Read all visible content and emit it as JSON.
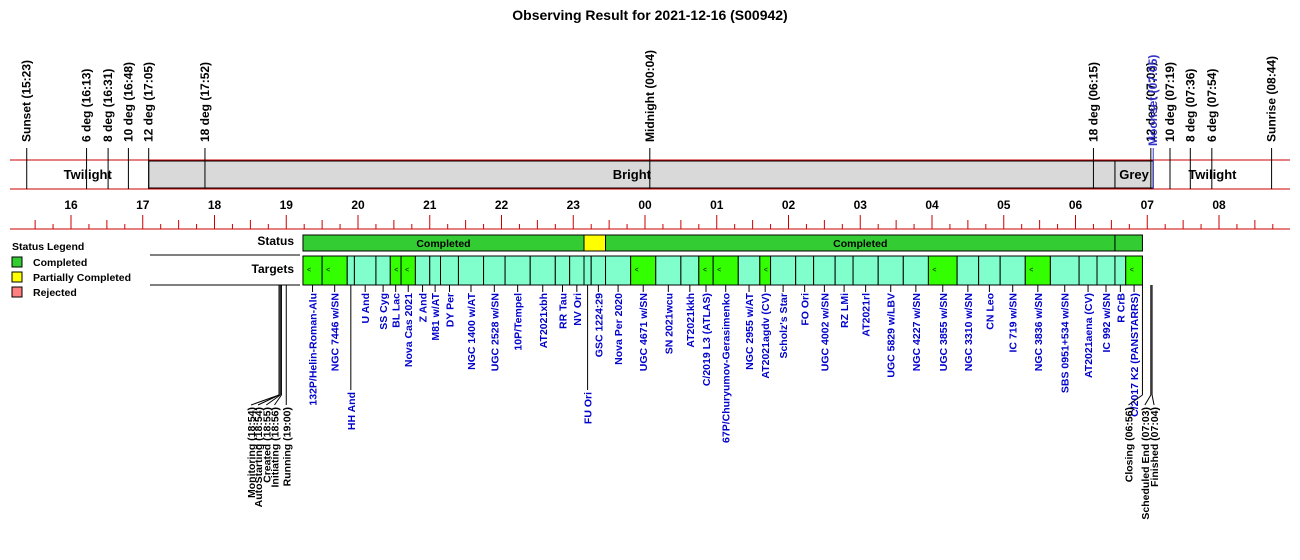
{
  "title": "Observing Result for 2021-12-16 (S00942)",
  "colors": {
    "line": "#cc0000",
    "bright_band": "#d9d9d9",
    "completed": "#33cc33",
    "partial": "#ffff00",
    "rejected": "#ff8080",
    "target_green": "#33ff00",
    "target_aqua": "#80ffcc",
    "target_text": "#0000cc",
    "moonset_text": "#3333cc"
  },
  "events": [
    {
      "label": "Sunset (15:23)",
      "t": 15.383
    },
    {
      "label": "6 deg (16:13)",
      "t": 16.217
    },
    {
      "label": "8 deg (16:31)",
      "t": 16.517
    },
    {
      "label": "10 deg (16:48)",
      "t": 16.8
    },
    {
      "label": "12 deg (17:05)",
      "t": 17.083
    },
    {
      "label": "18 deg (17:52)",
      "t": 17.867
    },
    {
      "label": "Midnight (00:04)",
      "t": 24.067
    },
    {
      "label": "18 deg (06:15)",
      "t": 30.25
    },
    {
      "label": "12 deg (07:03)",
      "t": 31.05
    },
    {
      "label": "Moonset (07:05)",
      "t": 31.083,
      "color": "moonset"
    },
    {
      "label": "10 deg (07:19)",
      "t": 31.317
    },
    {
      "label": "8 deg (07:36)",
      "t": 31.6
    },
    {
      "label": "6 deg (07:54)",
      "t": 31.9
    },
    {
      "label": "Sunrise (08:44)",
      "t": 32.733
    }
  ],
  "bands": [
    {
      "label": "Twilight",
      "start": 15.383,
      "end": 17.083,
      "fill": "white"
    },
    {
      "label": "Bright",
      "start": 17.083,
      "end": 30.55,
      "fill": "gray"
    },
    {
      "label": "Grey",
      "start": 30.55,
      "end": 31.083,
      "fill": "gray"
    },
    {
      "label": "Twilight",
      "start": 31.083,
      "end": 32.733,
      "fill": "white"
    }
  ],
  "hour_labels": [
    "16",
    "17",
    "18",
    "19",
    "20",
    "21",
    "22",
    "23",
    "00",
    "01",
    "02",
    "03",
    "04",
    "05",
    "06",
    "07",
    "08"
  ],
  "row_labels": {
    "status": "Status",
    "targets": "Targets"
  },
  "legend": {
    "title": "Status Legend",
    "items": [
      {
        "label": "Completed",
        "color": "completed"
      },
      {
        "label": "Partially Completed",
        "color": "partial"
      },
      {
        "label": "Rejected",
        "color": "rejected"
      }
    ]
  },
  "status_segments": [
    {
      "label": "Completed",
      "start": 19.233,
      "end": 23.15,
      "status": "completed"
    },
    {
      "label": "",
      "start": 23.15,
      "end": 23.45,
      "status": "partial"
    },
    {
      "label": "Completed",
      "start": 23.45,
      "end": 30.55,
      "status": "completed"
    },
    {
      "label": "",
      "start": 30.55,
      "end": 30.933,
      "status": "completed"
    }
  ],
  "targets": [
    {
      "name": "132P/Helin-Roman-Alu",
      "s": 19.233,
      "e": 19.5,
      "c": "green",
      "mark": true,
      "lane": "top"
    },
    {
      "name": "NGC 7446 w/SN",
      "s": 19.5,
      "e": 19.85,
      "c": "green",
      "mark": true,
      "lane": "top"
    },
    {
      "name": "HH And",
      "s": 19.85,
      "e": 19.95,
      "c": "aqua",
      "lane": "bottom"
    },
    {
      "name": "U And",
      "s": 19.95,
      "e": 20.25,
      "c": "aqua",
      "lane": "top"
    },
    {
      "name": "SS Cyg",
      "s": 20.25,
      "e": 20.45,
      "c": "aqua",
      "lane": "top"
    },
    {
      "name": "BL Lac",
      "s": 20.45,
      "e": 20.6,
      "c": "green",
      "mark": true,
      "lane": "top"
    },
    {
      "name": "Nova Cas 2021",
      "s": 20.6,
      "e": 20.8,
      "c": "green",
      "mark": true,
      "lane": "top"
    },
    {
      "name": "Z And",
      "s": 20.8,
      "e": 21.0,
      "c": "aqua",
      "lane": "top"
    },
    {
      "name": "M81 w/AT",
      "s": 21.0,
      "e": 21.15,
      "c": "aqua",
      "lane": "top"
    },
    {
      "name": "DY Per",
      "s": 21.15,
      "e": 21.4,
      "c": "aqua",
      "lane": "top"
    },
    {
      "name": "NGC 1400 w/AT",
      "s": 21.4,
      "e": 21.75,
      "c": "aqua",
      "lane": "top"
    },
    {
      "name": "UGC 2528 w/SN",
      "s": 21.75,
      "e": 22.05,
      "c": "aqua",
      "lane": "top"
    },
    {
      "name": "10P/Tempel",
      "s": 22.05,
      "e": 22.4,
      "c": "aqua",
      "lane": "top"
    },
    {
      "name": "AT2021xbh",
      "s": 22.4,
      "e": 22.75,
      "c": "aqua",
      "lane": "top"
    },
    {
      "name": "RR Tau",
      "s": 22.75,
      "e": 22.95,
      "c": "aqua",
      "lane": "top"
    },
    {
      "name": "NV Ori",
      "s": 22.95,
      "e": 23.15,
      "c": "aqua",
      "lane": "top"
    },
    {
      "name": "FU Ori",
      "s": 23.15,
      "e": 23.25,
      "c": "aqua",
      "lane": "bottom"
    },
    {
      "name": "GSC 1224:29",
      "s": 23.25,
      "e": 23.45,
      "c": "aqua",
      "lane": "top"
    },
    {
      "name": "Nova Per 2020",
      "s": 23.45,
      "e": 23.8,
      "c": "aqua",
      "lane": "top"
    },
    {
      "name": "UGC 4671 w/SN",
      "s": 23.8,
      "e": 24.15,
      "c": "green",
      "mark": true,
      "lane": "top"
    },
    {
      "name": "SN 2021wcu",
      "s": 24.15,
      "e": 24.5,
      "c": "aqua",
      "lane": "top"
    },
    {
      "name": "AT2021kkh",
      "s": 24.5,
      "e": 24.75,
      "c": "aqua",
      "lane": "top"
    },
    {
      "name": "C/2019 L3 (ATLAS)",
      "s": 24.75,
      "e": 24.95,
      "c": "green",
      "mark": true,
      "lane": "top"
    },
    {
      "name": "67P/Churyumov-Gerasimenko",
      "s": 24.95,
      "e": 25.3,
      "c": "green",
      "mark": true,
      "lane": "top"
    },
    {
      "name": "NGC 2955 w/AT",
      "s": 25.3,
      "e": 25.6,
      "c": "aqua",
      "lane": "top"
    },
    {
      "name": "AT2021agdv (CV)",
      "s": 25.6,
      "e": 25.75,
      "c": "green",
      "mark": true,
      "lane": "top"
    },
    {
      "name": "Scholz's Star",
      "s": 25.75,
      "e": 26.1,
      "c": "aqua",
      "lane": "top"
    },
    {
      "name": "FO Ori",
      "s": 26.1,
      "e": 26.35,
      "c": "aqua",
      "lane": "top"
    },
    {
      "name": "UGC 4002 w/SN",
      "s": 26.35,
      "e": 26.65,
      "c": "aqua",
      "lane": "top"
    },
    {
      "name": "RZ LMi",
      "s": 26.65,
      "e": 26.9,
      "c": "aqua",
      "lane": "top"
    },
    {
      "name": "AT2021rl",
      "s": 26.9,
      "e": 27.25,
      "c": "aqua",
      "lane": "top"
    },
    {
      "name": "UGC 5829 w/LBV",
      "s": 27.25,
      "e": 27.6,
      "c": "aqua",
      "lane": "top"
    },
    {
      "name": "NGC 4227 w/SN",
      "s": 27.6,
      "e": 27.95,
      "c": "aqua",
      "lane": "top"
    },
    {
      "name": "UGC 3855 w/SN",
      "s": 27.95,
      "e": 28.35,
      "c": "green",
      "mark": true,
      "lane": "top"
    },
    {
      "name": "NGC 3310 w/SN",
      "s": 28.35,
      "e": 28.65,
      "c": "aqua",
      "lane": "top"
    },
    {
      "name": "CN Leo",
      "s": 28.65,
      "e": 28.95,
      "c": "aqua",
      "lane": "top"
    },
    {
      "name": "IC 719 w/SN",
      "s": 28.95,
      "e": 29.3,
      "c": "aqua",
      "lane": "top"
    },
    {
      "name": "NGC 3836 w/SN",
      "s": 29.3,
      "e": 29.65,
      "c": "green",
      "mark": true,
      "lane": "top"
    },
    {
      "name": "SBS 0951+534 w/SN",
      "s": 29.65,
      "e": 30.05,
      "c": "aqua",
      "lane": "top"
    },
    {
      "name": "AT2021aena (CV)",
      "s": 30.05,
      "e": 30.3,
      "c": "aqua",
      "lane": "top"
    },
    {
      "name": "IC 992 w/SN",
      "s": 30.3,
      "e": 30.55,
      "c": "aqua",
      "lane": "top"
    },
    {
      "name": "R CrB",
      "s": 30.55,
      "e": 30.7,
      "c": "aqua",
      "lane": "top"
    },
    {
      "name": "C/2017 K2 (PANSTARRS)",
      "s": 30.7,
      "e": 30.933,
      "c": "green",
      "mark": true,
      "lane": "top"
    }
  ],
  "milestones": [
    {
      "label": "Monitoring (18:54)",
      "t": 18.9
    },
    {
      "label": "AutoStarting (18:54)",
      "t": 18.9
    },
    {
      "label": "Created (18:55)",
      "t": 18.917
    },
    {
      "label": "Initiating (18:56)",
      "t": 18.933
    },
    {
      "label": "Running (19:00)",
      "t": 19.0
    },
    {
      "label": "Closing (06:56)",
      "t": 30.933
    },
    {
      "label": "Scheduled End (07:03)",
      "t": 31.05
    },
    {
      "label": "Finished (07:04)",
      "t": 31.067
    }
  ]
}
